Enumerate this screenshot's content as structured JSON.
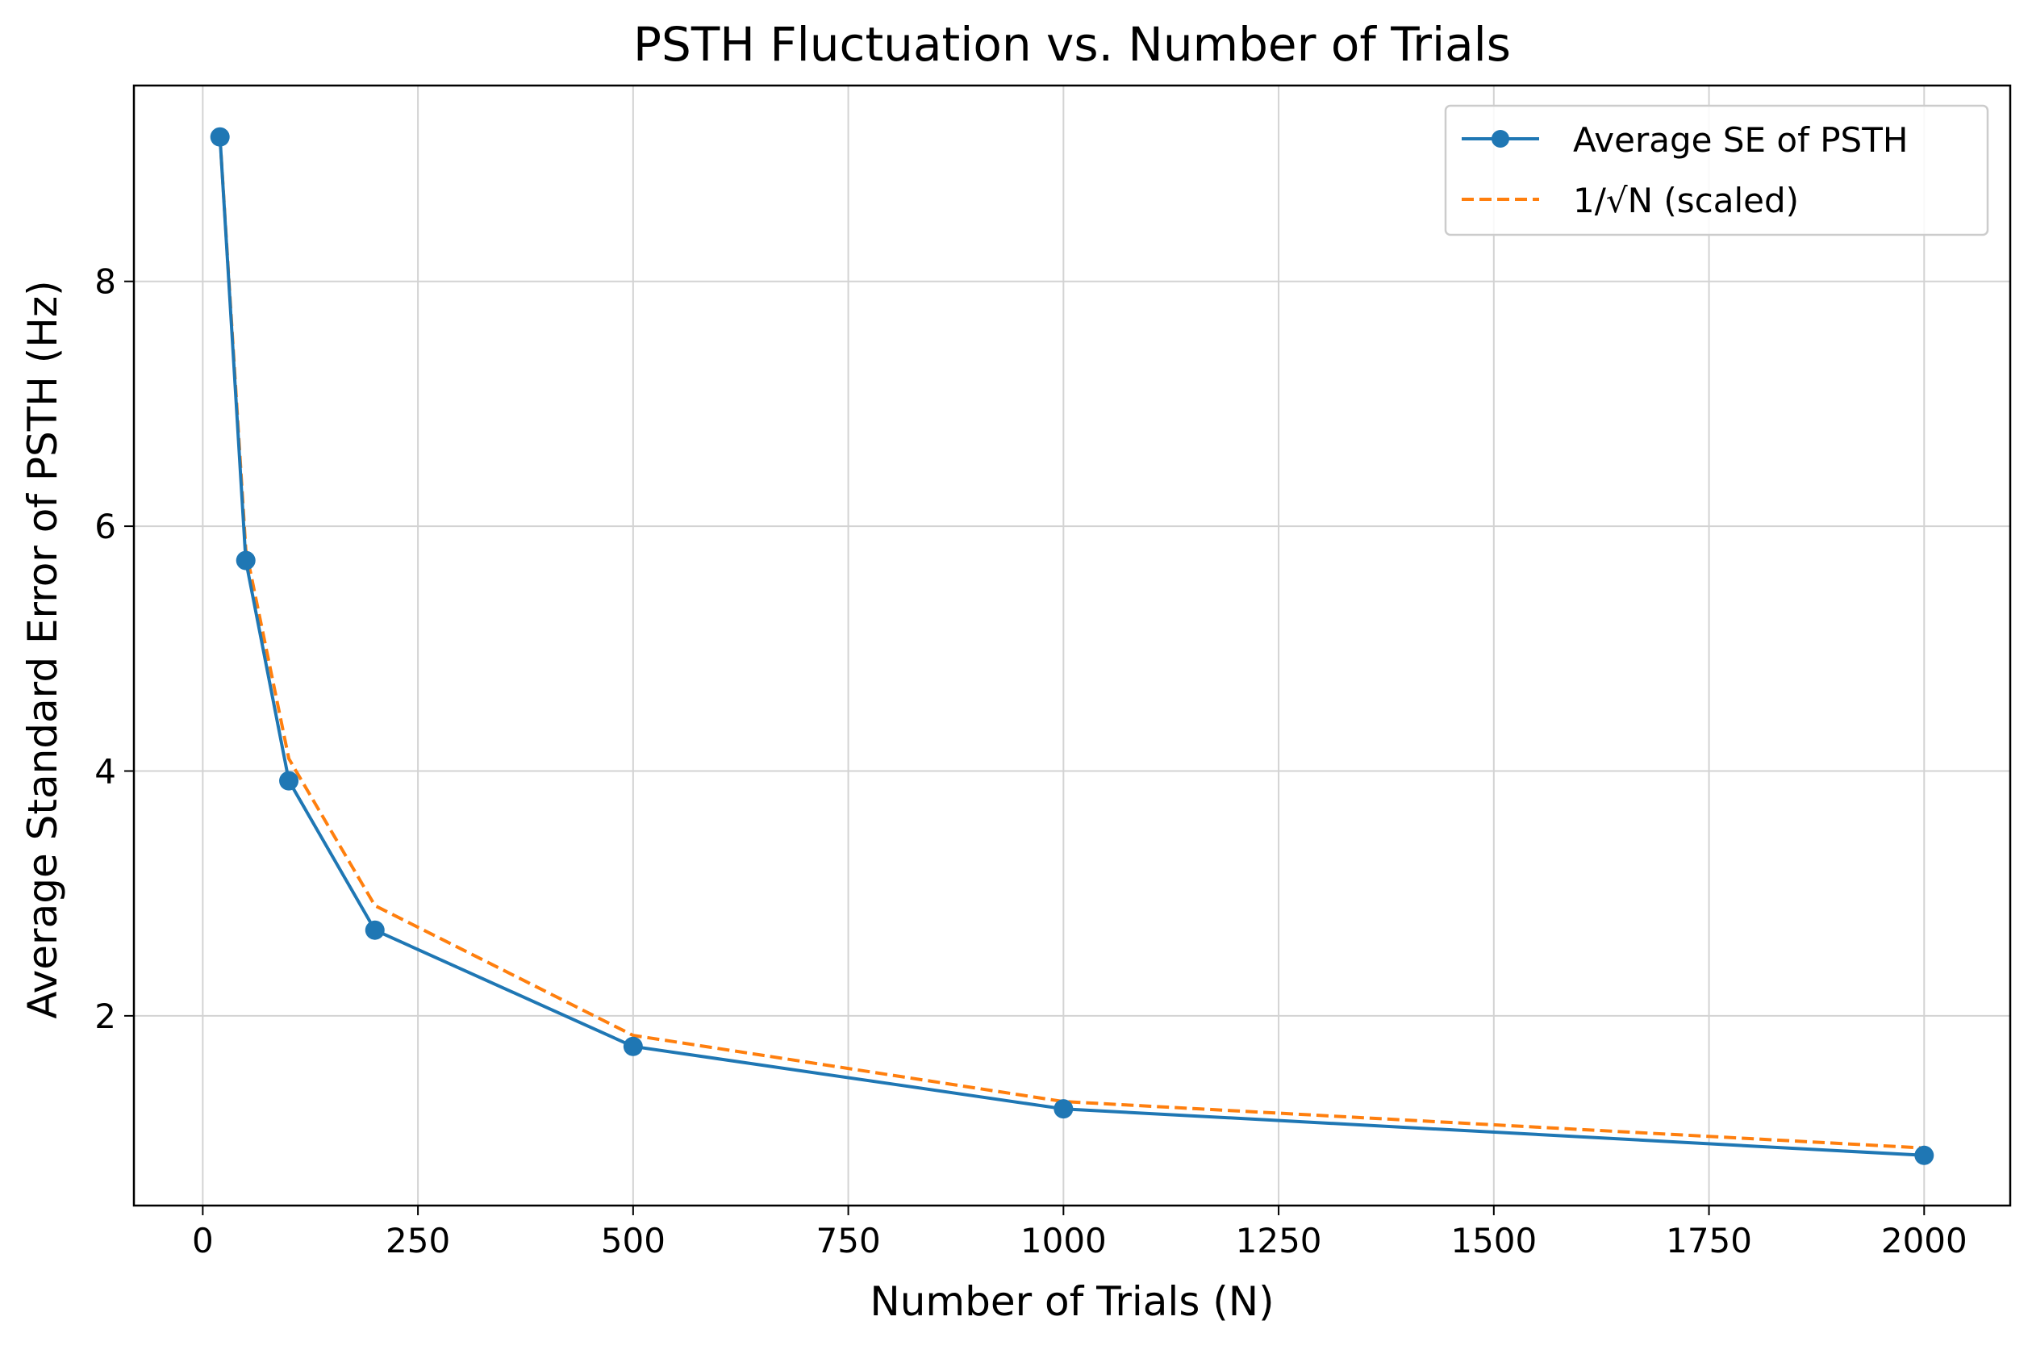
{
  "chart_data": {
    "type": "line",
    "title": "PSTH Fluctuation vs. Number of Trials",
    "xlabel": "Number of Trials (N)",
    "ylabel": "Average Standard Error of PSTH (Hz)",
    "xlim": [
      -80,
      2100
    ],
    "ylim": [
      0.45,
      9.6
    ],
    "xticks": [
      0,
      250,
      500,
      750,
      1000,
      1250,
      1500,
      1750,
      2000
    ],
    "xtick_labels": [
      "0",
      "250",
      "500",
      "750",
      "1000",
      "1250",
      "1500",
      "1750",
      "2000"
    ],
    "yticks": [
      2,
      4,
      6,
      8
    ],
    "ytick_labels": [
      "2",
      "4",
      "6",
      "8"
    ],
    "grid": true,
    "legend_position": "top-right",
    "x": [
      20,
      50,
      100,
      200,
      500,
      1000,
      2000
    ],
    "series": [
      {
        "name": "Average SE of PSTH",
        "values": [
          9.18,
          5.72,
          3.92,
          2.7,
          1.75,
          1.24,
          0.86
        ],
        "color": "#1f77b4",
        "style": "solid",
        "marker": "circle"
      },
      {
        "name": "1/√N (scaled)",
        "values": [
          9.18,
          5.81,
          4.1,
          2.9,
          1.84,
          1.3,
          0.92
        ],
        "color": "#ff7f0e",
        "style": "dashed",
        "marker": "none"
      }
    ]
  }
}
